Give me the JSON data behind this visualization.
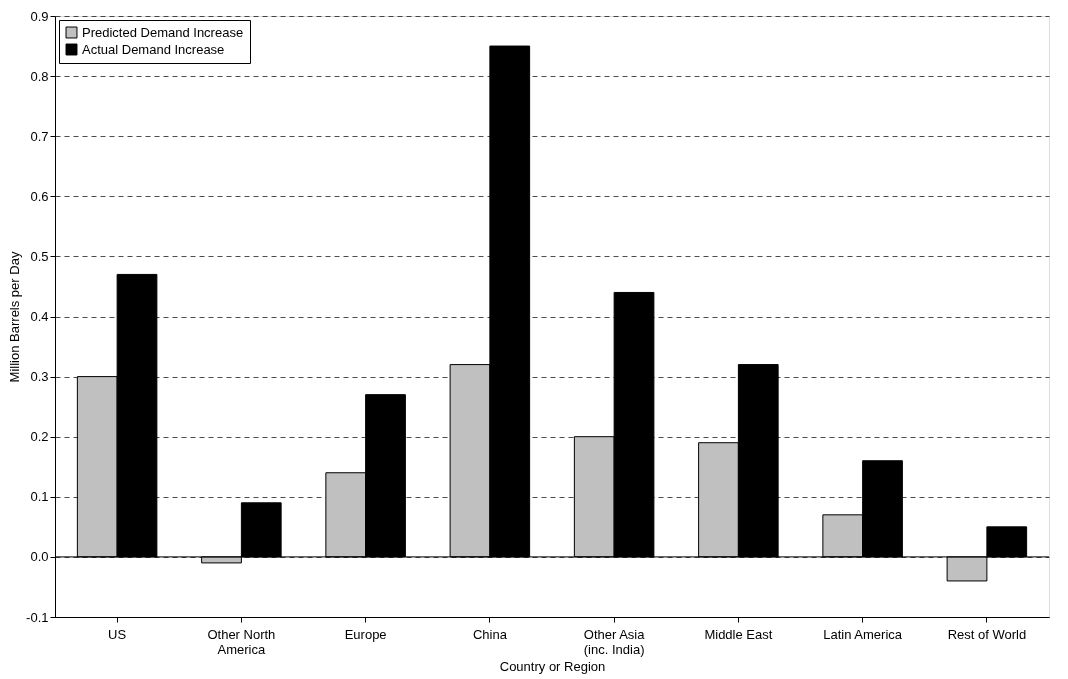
{
  "chart_data": {
    "type": "bar",
    "xlabel": "Country or Region",
    "ylabel": "Million Barrels per Day",
    "categories": [
      "US",
      "Other North America",
      "Europe",
      "China",
      "Other Asia (inc. India)",
      "Middle East",
      "Latin America",
      "Rest of World"
    ],
    "series": [
      {
        "name": "Predicted Demand Increase",
        "color": "#c0c0c0",
        "values": [
          0.3,
          -0.01,
          0.14,
          0.32,
          0.2,
          0.19,
          0.07,
          -0.04
        ]
      },
      {
        "name": "Actual Demand Increase",
        "color": "#000000",
        "values": [
          0.47,
          0.09,
          0.27,
          0.85,
          0.44,
          0.32,
          0.16,
          0.05
        ]
      }
    ],
    "ylim": [
      -0.1,
      0.9
    ],
    "yticks": [
      -0.1,
      {
        "value": 0,
        "label": "0.0"
      },
      0.1,
      0.2,
      0.3,
      0.4,
      0.5,
      0.6,
      0.7,
      0.8,
      0.9
    ],
    "ref_lines": [
      {
        "axis": "y",
        "value": 0
      }
    ],
    "grid": "y",
    "legend": "top left"
  }
}
